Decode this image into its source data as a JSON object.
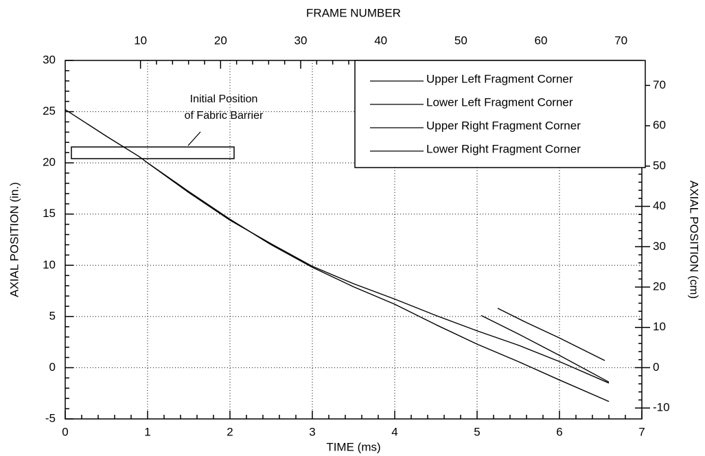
{
  "chart_data": {
    "type": "line",
    "xlabel": "TIME (ms)",
    "x2label": "FRAME NUMBER",
    "ylabel": "AXIAL POSITION (in.)",
    "y2label": "AXIAL POSITION (cm)",
    "annotation": [
      "Initial Position",
      "of Fabric Barrier"
    ],
    "xlim": [
      0,
      7
    ],
    "xticks": [
      0,
      1,
      2,
      3,
      4,
      5,
      6,
      7
    ],
    "x2lim": [
      0.6,
      72.6
    ],
    "x2ticks": [
      10,
      20,
      30,
      40,
      50,
      60,
      70
    ],
    "ylim": [
      -5,
      30
    ],
    "yticks": [
      -5,
      0,
      5,
      10,
      15,
      20,
      25,
      30
    ],
    "y2lim": [
      -12.7,
      76.2
    ],
    "y2ticks": [
      -10,
      0,
      10,
      20,
      30,
      40,
      50,
      60,
      70
    ],
    "grid": true,
    "legend": "upper right",
    "series": [
      {
        "name": "Upper Left Fragment Corner",
        "color": "#000000",
        "x": [
          0,
          0.5,
          0.9,
          1,
          1.5,
          2,
          2.5,
          3,
          3.5,
          4,
          4.5,
          5,
          5.5,
          6,
          6.6
        ],
        "values": [
          25.2,
          22.6,
          20.6,
          20,
          17.1,
          14.4,
          12.1,
          9.9,
          8.2,
          6.7,
          5.1,
          3.6,
          2.2,
          0.6,
          -1.5
        ]
      },
      {
        "name": "Lower Left Fragment Corner",
        "color": "#000000",
        "x": [
          1,
          1.5,
          2,
          2.5,
          3,
          3.5,
          4,
          4.5,
          5,
          5.5,
          6,
          6.6
        ],
        "values": [
          20,
          17.2,
          14.5,
          12,
          9.8,
          7.9,
          6.2,
          4.2,
          2.3,
          0.6,
          -1.2,
          -3.3
        ]
      },
      {
        "name": "Upper Right Fragment Corner",
        "color": "#000000",
        "x": [
          5.25,
          5.6,
          6,
          6.55
        ],
        "values": [
          5.8,
          4.4,
          2.9,
          0.7
        ]
      },
      {
        "name": "Lower Right Fragment Corner",
        "color": "#000000",
        "x": [
          5.05,
          5.5,
          6,
          6.6
        ],
        "values": [
          5.1,
          3.3,
          1.2,
          -1.4
        ]
      }
    ]
  }
}
